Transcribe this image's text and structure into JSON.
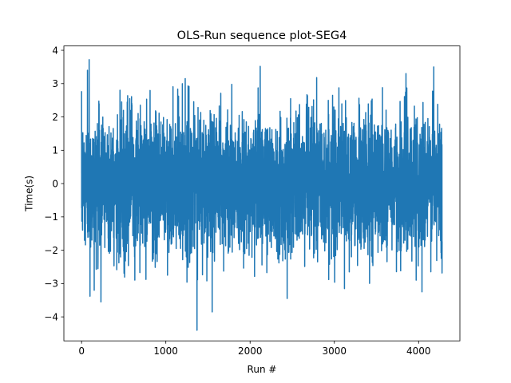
{
  "chart_data": {
    "type": "line",
    "title": "OLS-Run sequence plot-SEG4",
    "xlabel": "Run #",
    "ylabel": "Time(s)",
    "xlim": [
      -210,
      4490
    ],
    "ylim": [
      -4.72,
      4.13
    ],
    "xticks": [
      0,
      1000,
      2000,
      3000,
      4000
    ],
    "yticks": [
      -4,
      -3,
      -2,
      -1,
      0,
      1,
      2,
      3,
      4
    ],
    "xtick_labels": [
      "0",
      "1000",
      "2000",
      "3000",
      "4000"
    ],
    "ytick_labels": [
      "−4",
      "−3",
      "−2",
      "−1",
      "0",
      "1",
      "2",
      "3",
      "4"
    ],
    "grid": false,
    "legend": "none",
    "series": [
      {
        "color": "#1f77b4",
        "n_points": 4280,
        "mean": 0.0,
        "std": 1.0,
        "x_start": 0,
        "x_end": 4279,
        "notable_points": [
          {
            "x": 90,
            "y": 3.72
          },
          {
            "x": 70,
            "y": 3.4
          },
          {
            "x": 1370,
            "y": -4.4
          },
          {
            "x": 1550,
            "y": -3.85
          },
          {
            "x": 2120,
            "y": 3.52
          },
          {
            "x": 2440,
            "y": -3.45
          },
          {
            "x": 4180,
            "y": 3.5
          },
          {
            "x": 3850,
            "y": 3.3
          },
          {
            "x": 230,
            "y": -3.55
          },
          {
            "x": 100,
            "y": -3.38
          },
          {
            "x": 150,
            "y": -3.2
          },
          {
            "x": 1230,
            "y": 3.15
          },
          {
            "x": 2790,
            "y": 3.18
          },
          {
            "x": 3120,
            "y": -3.15
          },
          {
            "x": 4040,
            "y": -3.25
          }
        ]
      }
    ]
  }
}
